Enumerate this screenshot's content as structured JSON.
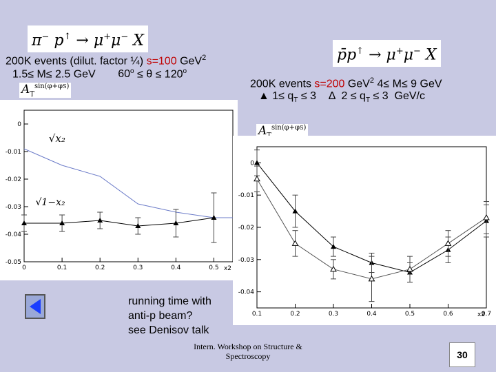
{
  "formula_left": {
    "pre": "π",
    "sup1": "−",
    "p": "p",
    "arrow1": "↑",
    "to": "→",
    "mu": "μ",
    "sup2": "+",
    "mu2": "μ",
    "sup3": "−",
    "x": "X"
  },
  "formula_right": {
    "pre": "p̄p",
    "arrow1": "↑",
    "to": "→",
    "mu": "μ",
    "sup2": "+",
    "mu2": "μ",
    "sup3": "−",
    "x": "X"
  },
  "left_header": {
    "line1_black": "200K events (dilut. factor ¼)",
    "line1_red": "s=100",
    "line1_unit": "GeV",
    "line1_exp": "2",
    "line2_a": "1.5≤ M≤ 2.5 GeV",
    "line2_b": "60",
    "line2_b_sup": "o",
    "line2_c": " ≤ θ ≤ 120",
    "line2_c_sup": "o"
  },
  "right_header": {
    "line1_black": "200K events",
    "line1_red": "s=200",
    "line1_unit": "GeV",
    "line1_exp": "2",
    "line1_mass": "4≤ M≤ 9 GeV",
    "line2": "▲ 1≤ q",
    "line2_sub": "T",
    "line2_b": " ≤ 3    Δ  2 ≤ q",
    "line2_b_sub": "T",
    "line2_c": " ≤ 3  GeV/c"
  },
  "ylabel_left": {
    "a": "A",
    "sub": "T",
    "sup": "sin(φ+φ",
    "sup_sub": "S",
    "sup_end": ")"
  },
  "ylabel_right": {
    "a": "A",
    "sub": "T",
    "sup": "sin(φ+φ",
    "sup_sub": "S",
    "sup_end": ")"
  },
  "notes": "running time with\nanti-p beam?\nsee Denisov talk",
  "footer": "Intern. Workshop on Structure &\nSpectroscopy",
  "page_number": "30",
  "colors": {
    "background": "#c8c9e3",
    "accent_red": "#c00000",
    "curve_blue": "#6b7bc8"
  },
  "chart_data": [
    {
      "type": "line",
      "title": "",
      "xlabel": "x2",
      "ylabel": "A_T^sin(φ+φS)",
      "xlim": [
        0,
        0.55
      ],
      "ylim": [
        -0.05,
        0.005
      ],
      "x_ticks": [
        "0",
        "0.1",
        "0.2",
        "0.3",
        "0.4",
        "0.5"
      ],
      "y_ticks": [
        "0",
        "-0.01",
        "-0.02",
        "-0.03",
        "-0.04",
        "-0.05"
      ],
      "annotations": [
        "√x₂",
        "√1−x₂"
      ],
      "series": [
        {
          "name": "√x2",
          "x": [
            0.0,
            0.1,
            0.2,
            0.3,
            0.4,
            0.5,
            0.55
          ],
          "values": [
            -0.009,
            -0.015,
            -0.019,
            -0.029,
            -0.032,
            -0.034,
            -0.034
          ]
        },
        {
          "name": "√1-x2",
          "x": [
            0.0,
            0.1,
            0.2,
            0.3,
            0.4,
            0.5
          ],
          "values": [
            -0.036,
            -0.036,
            -0.035,
            -0.037,
            -0.036,
            -0.034
          ],
          "errors": [
            0.003,
            0.003,
            0.003,
            0.003,
            0.005,
            0.009
          ]
        }
      ]
    },
    {
      "type": "line",
      "title": "",
      "xlabel": "x2",
      "ylabel": "A_T^sin(φ+φS)",
      "xlim": [
        0.1,
        0.7
      ],
      "ylim": [
        -0.045,
        0.005
      ],
      "x_ticks": [
        "0.1",
        "0.2",
        "0.3",
        "0.4",
        "0.5",
        "0.6",
        "0.7"
      ],
      "y_ticks": [
        "0",
        "-0.01",
        "-0.02",
        "-0.03",
        "-0.04"
      ],
      "series": [
        {
          "name": "1≤qT≤3",
          "marker": "filled-triangle",
          "x": [
            0.1,
            0.2,
            0.3,
            0.4,
            0.5,
            0.6,
            0.7
          ],
          "values": [
            0.0,
            -0.015,
            -0.026,
            -0.031,
            -0.034,
            -0.027,
            -0.018
          ],
          "errors": [
            0.004,
            0.005,
            0.003,
            0.003,
            0.003,
            0.004,
            0.005
          ]
        },
        {
          "name": "2≤qT≤3",
          "marker": "open-triangle",
          "x": [
            0.1,
            0.2,
            0.3,
            0.4,
            0.5,
            0.6,
            0.7
          ],
          "values": [
            -0.005,
            -0.025,
            -0.033,
            -0.036,
            -0.033,
            -0.025,
            -0.017
          ],
          "errors": [
            0.004,
            0.004,
            0.003,
            0.007,
            0.004,
            0.004,
            0.005
          ]
        }
      ]
    }
  ]
}
